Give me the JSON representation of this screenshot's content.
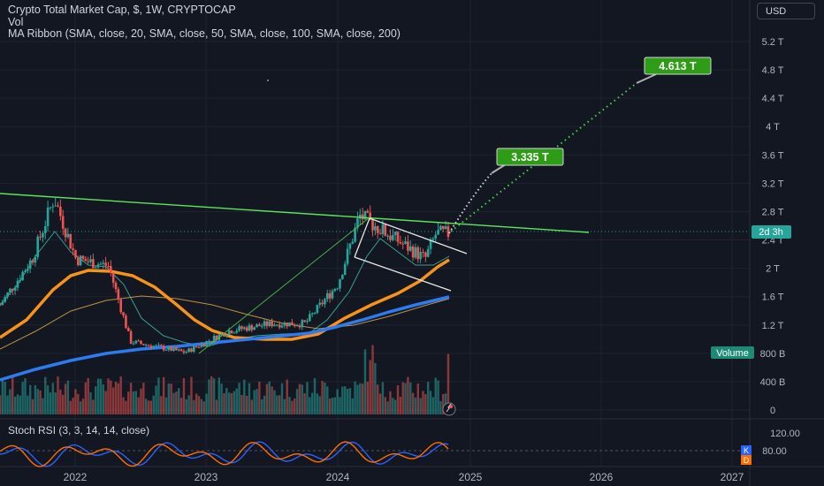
{
  "header": {
    "title": "Crypto Total Market Cap, $, 1W, CRYPTOCAP",
    "vol_label": "Vol",
    "ma_ribbon": "MA Ribbon (SMA, close, 20, SMA, close, 50, SMA, close, 100, SMA, close, 200)",
    "currency_button": "USD"
  },
  "price_axis": {
    "ticks": [
      "5.2 T",
      "4.8 T",
      "4.4 T",
      "4 T",
      "3.6 T",
      "3.2 T",
      "2.8 T",
      "2.4 T",
      "2 T",
      "1.6 T",
      "1.2 T",
      "800 B",
      "400 B",
      "0"
    ],
    "current_label": "2d 3h",
    "volume_label": "Volume"
  },
  "time_axis": {
    "labels": [
      "2022",
      "2023",
      "2024",
      "2025",
      "2026",
      "2027"
    ]
  },
  "rsi": {
    "title": "Stoch RSI (3, 3, 14, 14, close)",
    "ticks": [
      "120.00",
      "80.00"
    ],
    "k_label": "K",
    "d_label": "D"
  },
  "annotations": {
    "target_1": "3.335 T",
    "target_2": "4.613 T"
  },
  "colors": {
    "background": "#131722",
    "up_candle": "#26a69a",
    "down_candle": "#ef5350",
    "trendline": "#5ce65c",
    "sma_orange": "#f7931a",
    "sma_blue": "#2d7bf0",
    "label_green": "#2e9c16",
    "stoch_k": "#2962ff",
    "stoch_d": "#ff6d00"
  },
  "chart_data": {
    "type": "candlestick",
    "symbol": "CRYPTOCAP:TOTAL",
    "interval": "1W",
    "unit": "USD trillions",
    "approx_close_path": [
      {
        "t": "2021-06",
        "v": 1.45
      },
      {
        "t": "2021-09",
        "v": 2.1
      },
      {
        "t": "2021-11",
        "v": 2.95
      },
      {
        "t": "2022-01",
        "v": 2.1
      },
      {
        "t": "2022-04",
        "v": 2.0
      },
      {
        "t": "2022-06",
        "v": 0.95
      },
      {
        "t": "2022-11",
        "v": 0.8
      },
      {
        "t": "2023-03",
        "v": 1.1
      },
      {
        "t": "2023-07",
        "v": 1.2
      },
      {
        "t": "2023-10",
        "v": 1.2
      },
      {
        "t": "2024-01",
        "v": 1.75
      },
      {
        "t": "2024-03",
        "v": 2.7
      },
      {
        "t": "2024-06",
        "v": 2.4
      },
      {
        "t": "2024-09",
        "v": 2.1
      },
      {
        "t": "2024-10",
        "v": 2.45
      }
    ],
    "last_price": 2.5,
    "projection": [
      {
        "t": "2024-11",
        "v": 2.6
      },
      {
        "t": "2025-01",
        "v": 3.335
      },
      {
        "t": "2026-04",
        "v": 4.613
      }
    ],
    "price_axis_range": [
      0,
      5.4
    ],
    "legend": "top-left"
  }
}
